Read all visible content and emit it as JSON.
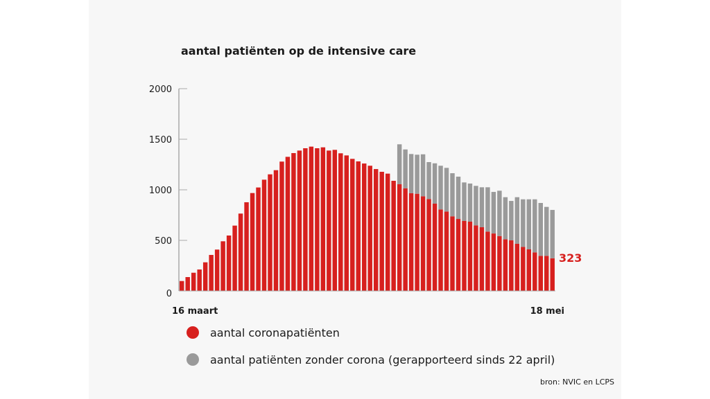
{
  "chart_data": {
    "type": "bar",
    "stacked": true,
    "title": "aantal patiënten op de intensive care",
    "x_start_label": "16 maart",
    "x_end_label": "18 mei",
    "ylim": [
      0,
      2000
    ],
    "yticks": [
      "0",
      "500",
      "1000",
      "1500",
      "2000"
    ],
    "ytick_values": [
      0,
      500,
      1000,
      1500,
      2000
    ],
    "last_value_label": "323",
    "colors": {
      "corona": "#d7201e",
      "non_corona": "#9a9a9a"
    },
    "series": [
      {
        "name": "aantal coronapatiënten",
        "values": [
          98,
          137,
          180,
          212,
          283,
          356,
          409,
          491,
          548,
          646,
          765,
          877,
          968,
          1023,
          1100,
          1153,
          1194,
          1279,
          1326,
          1363,
          1388,
          1411,
          1427,
          1411,
          1420,
          1388,
          1395,
          1361,
          1340,
          1306,
          1281,
          1260,
          1238,
          1205,
          1178,
          1160,
          1089,
          1055,
          1014,
          966,
          961,
          936,
          909,
          863,
          806,
          785,
          738,
          712,
          692,
          685,
          648,
          630,
          587,
          568,
          543,
          511,
          500,
          466,
          436,
          411,
          381,
          347,
          347,
          323
        ]
      },
      {
        "name": "aantal patiënten zonder corona (gerapporteerd sinds 22 april)",
        "values": [
          0,
          0,
          0,
          0,
          0,
          0,
          0,
          0,
          0,
          0,
          0,
          0,
          0,
          0,
          0,
          0,
          0,
          0,
          0,
          0,
          0,
          0,
          0,
          0,
          0,
          0,
          0,
          0,
          0,
          0,
          0,
          0,
          0,
          0,
          0,
          0,
          0,
          395,
          385,
          388,
          386,
          415,
          365,
          399,
          432,
          432,
          426,
          418,
          381,
          377,
          391,
          395,
          438,
          411,
          448,
          416,
          390,
          461,
          470,
          495,
          525,
          523,
          484,
          478
        ]
      }
    ],
    "source": "bron: NVIC en LCPS"
  }
}
